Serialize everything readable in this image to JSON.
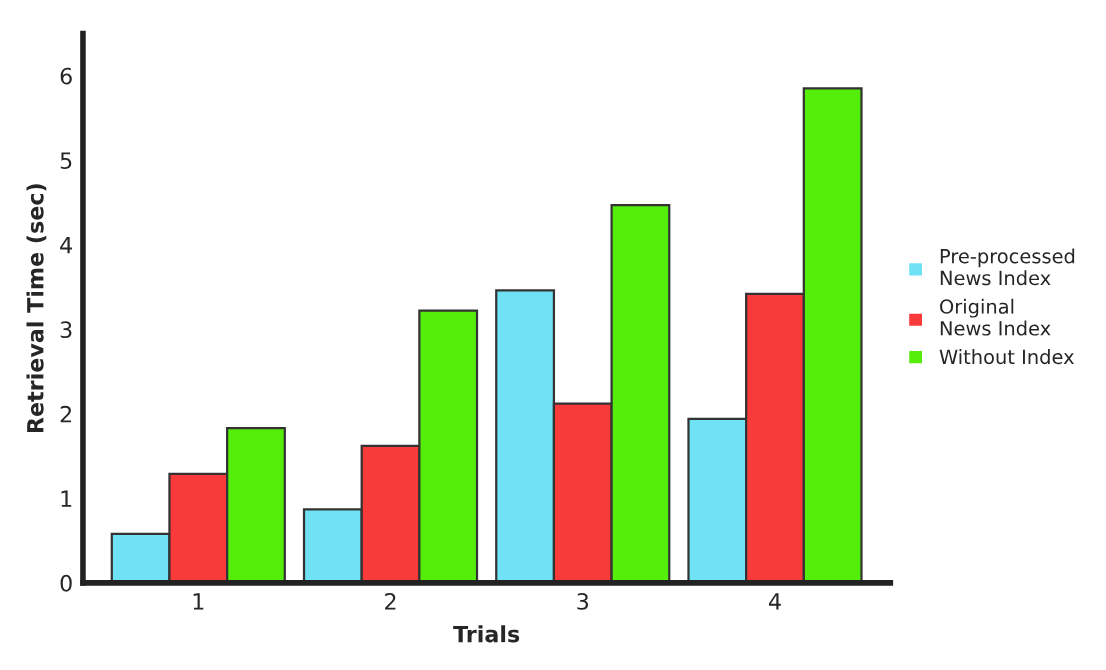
{
  "chart_data": {
    "type": "bar",
    "xlabel": "Trials",
    "ylabel": "Retrieval Time (sec)",
    "categories": [
      "1",
      "2",
      "3",
      "4"
    ],
    "series": [
      {
        "name": "Pre-processed\nNews Index",
        "color": "#6fe3f5",
        "values": [
          0.58,
          0.87,
          3.46,
          1.94
        ]
      },
      {
        "name": "Original\nNews Index",
        "color": "#f83a3a",
        "values": [
          1.29,
          1.62,
          2.12,
          3.42
        ]
      },
      {
        "name": "Without Index",
        "color": "#55ee0a",
        "values": [
          1.83,
          3.22,
          4.47,
          5.85
        ]
      }
    ],
    "ylim": [
      0,
      6.5
    ],
    "yticks": [
      0,
      1,
      2,
      3,
      4,
      5,
      6
    ],
    "grid": false,
    "legend": "right"
  }
}
